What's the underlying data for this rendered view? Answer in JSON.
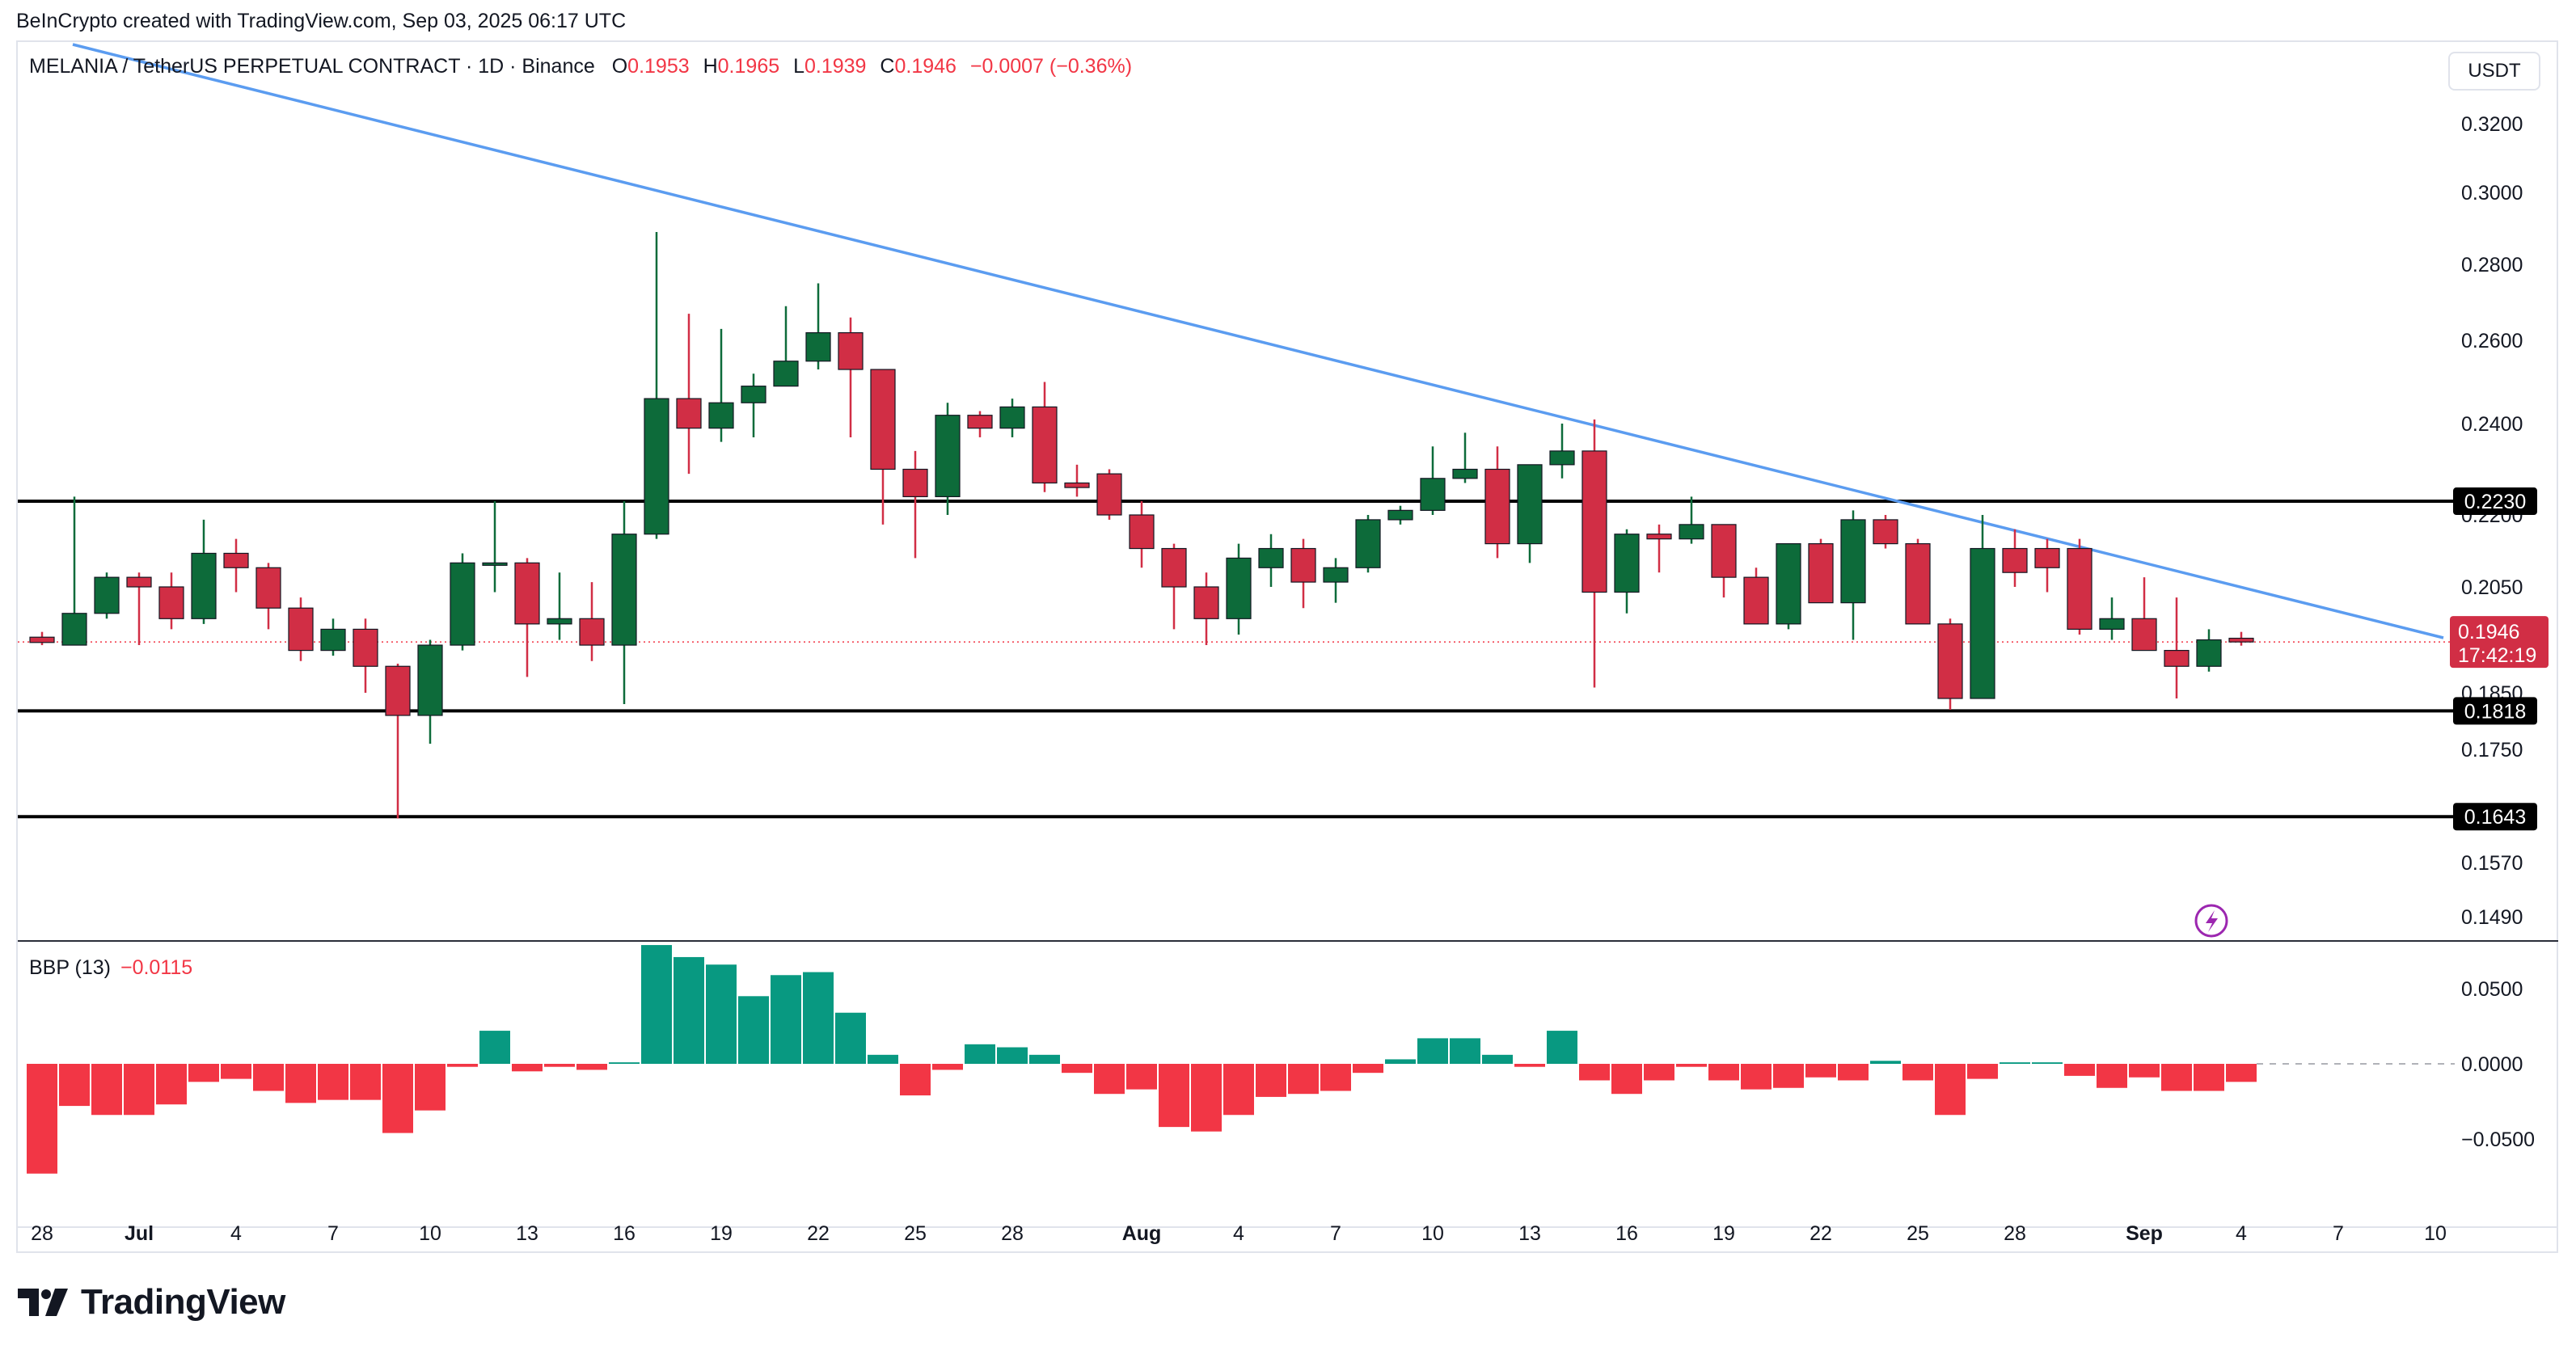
{
  "header": {
    "credit": "BeInCrypto created with TradingView.com, Sep 03, 2025 06:17 UTC"
  },
  "legend": {
    "symbol": "MELANIA / TetherUS PERPETUAL CONTRACT · 1D · Binance",
    "o_label": "O",
    "o_value": "0.1953",
    "h_label": "H",
    "h_value": "0.1965",
    "l_label": "L",
    "l_value": "0.1939",
    "c_label": "C",
    "c_value": "0.1946",
    "change": "−0.0007 (−0.36%)"
  },
  "currency_button": "USDT",
  "indicator": {
    "name": "BBP (13)",
    "value": "−0.0115"
  },
  "brand": {
    "name": "TradingView"
  },
  "colors": {
    "up": "#0d6b3a",
    "down": "#d12e45",
    "trendline": "#5b9cf0",
    "hist_up": "#089981",
    "hist_down": "#f23645",
    "level": "#000000",
    "price_line": "#f23645"
  },
  "chart_data": [
    {
      "type": "candlestick",
      "title": "MELANIA / TetherUS PERPETUAL CONTRACT · 1D · Binance",
      "y_axis_ticks": [
        0.32,
        0.3,
        0.28,
        0.26,
        0.24,
        0.22,
        0.205,
        0.185,
        0.175,
        0.157,
        0.149
      ],
      "y_tick_labels": [
        "0.3200",
        "0.3000",
        "0.2800",
        "0.2600",
        "0.2400",
        "0.2200",
        "0.2050",
        "0.1850",
        "0.1750",
        "0.1570",
        "0.1490"
      ],
      "x_tick_labels": [
        "28",
        "Jul",
        "4",
        "7",
        "10",
        "13",
        "16",
        "19",
        "22",
        "25",
        "28",
        "Aug",
        "4",
        "7",
        "10",
        "13",
        "16",
        "19",
        "22",
        "25",
        "28",
        "Sep",
        "4",
        "7",
        "10"
      ],
      "x_tick_days": [
        0,
        3,
        6,
        9,
        12,
        15,
        18,
        21,
        24,
        27,
        30,
        34,
        37,
        40,
        43,
        46,
        49,
        52,
        55,
        58,
        61,
        65,
        68,
        71,
        74
      ],
      "first_day": "Jun 27",
      "horizontal_levels": [
        {
          "value": 0.223,
          "label": "0.2230"
        },
        {
          "value": 0.1818,
          "label": "0.1818"
        },
        {
          "value": 0.1643,
          "label": "0.1643"
        }
      ],
      "last_price": {
        "value": 0.1946,
        "label": "0.1946",
        "countdown": "17:42:19"
      },
      "trendline": {
        "start": {
          "day": 0.5,
          "price": 0.327
        },
        "end": {
          "day": 75.5,
          "price": 0.195
        }
      },
      "ohlc": [
        [
          0.1955,
          0.1965,
          0.194,
          0.1945
        ],
        [
          0.194,
          0.224,
          0.194,
          0.2
        ],
        [
          0.2,
          0.208,
          0.199,
          0.207
        ],
        [
          0.207,
          0.208,
          0.194,
          0.205
        ],
        [
          0.205,
          0.208,
          0.197,
          0.199
        ],
        [
          0.199,
          0.219,
          0.198,
          0.212
        ],
        [
          0.212,
          0.215,
          0.204,
          0.209
        ],
        [
          0.209,
          0.21,
          0.197,
          0.201
        ],
        [
          0.201,
          0.203,
          0.191,
          0.193
        ],
        [
          0.193,
          0.199,
          0.192,
          0.197
        ],
        [
          0.197,
          0.199,
          0.185,
          0.19
        ],
        [
          0.19,
          0.1905,
          0.164,
          0.181
        ],
        [
          0.181,
          0.195,
          0.176,
          0.194
        ],
        [
          0.194,
          0.212,
          0.193,
          0.21
        ],
        [
          0.21,
          0.223,
          0.204,
          0.21
        ],
        [
          0.21,
          0.211,
          0.188,
          0.198
        ],
        [
          0.198,
          0.208,
          0.195,
          0.199
        ],
        [
          0.199,
          0.206,
          0.191,
          0.194
        ],
        [
          0.194,
          0.223,
          0.183,
          0.216
        ],
        [
          0.216,
          0.289,
          0.215,
          0.246
        ],
        [
          0.246,
          0.267,
          0.229,
          0.239
        ],
        [
          0.239,
          0.263,
          0.236,
          0.245
        ],
        [
          0.245,
          0.252,
          0.237,
          0.249
        ],
        [
          0.249,
          0.269,
          0.249,
          0.255
        ],
        [
          0.255,
          0.275,
          0.253,
          0.262
        ],
        [
          0.262,
          0.266,
          0.237,
          0.253
        ],
        [
          0.253,
          0.253,
          0.218,
          0.23
        ],
        [
          0.23,
          0.234,
          0.211,
          0.224
        ],
        [
          0.224,
          0.245,
          0.22,
          0.242
        ],
        [
          0.242,
          0.243,
          0.237,
          0.239
        ],
        [
          0.239,
          0.246,
          0.237,
          0.244
        ],
        [
          0.244,
          0.25,
          0.225,
          0.227
        ],
        [
          0.227,
          0.231,
          0.224,
          0.226
        ],
        [
          0.229,
          0.23,
          0.219,
          0.22
        ],
        [
          0.22,
          0.223,
          0.209,
          0.213
        ],
        [
          0.213,
          0.214,
          0.197,
          0.205
        ],
        [
          0.205,
          0.208,
          0.194,
          0.199
        ],
        [
          0.199,
          0.214,
          0.196,
          0.211
        ],
        [
          0.209,
          0.216,
          0.205,
          0.213
        ],
        [
          0.213,
          0.215,
          0.201,
          0.206
        ],
        [
          0.206,
          0.211,
          0.202,
          0.209
        ],
        [
          0.209,
          0.22,
          0.208,
          0.219
        ],
        [
          0.219,
          0.222,
          0.218,
          0.221
        ],
        [
          0.221,
          0.235,
          0.22,
          0.228
        ],
        [
          0.228,
          0.238,
          0.227,
          0.23
        ],
        [
          0.23,
          0.235,
          0.211,
          0.214
        ],
        [
          0.214,
          0.231,
          0.21,
          0.231
        ],
        [
          0.231,
          0.24,
          0.228,
          0.234
        ],
        [
          0.234,
          0.241,
          0.186,
          0.204
        ],
        [
          0.204,
          0.217,
          0.2,
          0.216
        ],
        [
          0.216,
          0.218,
          0.208,
          0.215
        ],
        [
          0.215,
          0.224,
          0.214,
          0.218
        ],
        [
          0.218,
          0.218,
          0.203,
          0.207
        ],
        [
          0.207,
          0.209,
          0.199,
          0.198
        ],
        [
          0.198,
          0.214,
          0.197,
          0.214
        ],
        [
          0.214,
          0.215,
          0.202,
          0.202
        ],
        [
          0.202,
          0.221,
          0.195,
          0.219
        ],
        [
          0.219,
          0.22,
          0.213,
          0.214
        ],
        [
          0.214,
          0.215,
          0.198,
          0.198
        ],
        [
          0.198,
          0.199,
          0.182,
          0.184
        ],
        [
          0.184,
          0.22,
          0.184,
          0.213
        ],
        [
          0.213,
          0.217,
          0.205,
          0.208
        ],
        [
          0.213,
          0.215,
          0.204,
          0.209
        ],
        [
          0.213,
          0.215,
          0.196,
          0.197
        ],
        [
          0.197,
          0.203,
          0.195,
          0.199
        ],
        [
          0.199,
          0.207,
          0.194,
          0.193
        ],
        [
          0.193,
          0.203,
          0.184,
          0.19
        ],
        [
          0.19,
          0.197,
          0.189,
          0.195
        ],
        [
          0.1953,
          0.1965,
          0.1939,
          0.1946
        ]
      ]
    },
    {
      "type": "bar",
      "title": "BBP (13)",
      "y_axis_ticks": [
        0.05,
        0.0,
        -0.05
      ],
      "y_tick_labels": [
        "0.0500",
        "0.0000",
        "−0.0500"
      ],
      "values": [
        -0.073,
        -0.028,
        -0.034,
        -0.034,
        -0.027,
        -0.012,
        -0.01,
        -0.018,
        -0.026,
        -0.024,
        -0.024,
        -0.046,
        -0.031,
        -0.002,
        0.022,
        -0.005,
        -0.002,
        -0.004,
        0.001,
        0.079,
        0.071,
        0.066,
        0.045,
        0.059,
        0.061,
        0.034,
        0.006,
        -0.021,
        -0.004,
        0.013,
        0.011,
        0.006,
        -0.006,
        -0.02,
        -0.017,
        -0.042,
        -0.045,
        -0.034,
        -0.022,
        -0.02,
        -0.018,
        -0.006,
        0.003,
        0.017,
        0.017,
        0.006,
        -0.002,
        0.022,
        -0.011,
        -0.02,
        -0.011,
        -0.002,
        -0.011,
        -0.017,
        -0.016,
        -0.009,
        -0.011,
        0.002,
        -0.011,
        -0.034,
        -0.01,
        0.001,
        0.001,
        -0.008,
        -0.016,
        -0.009,
        -0.018,
        -0.018,
        -0.012
      ]
    }
  ]
}
